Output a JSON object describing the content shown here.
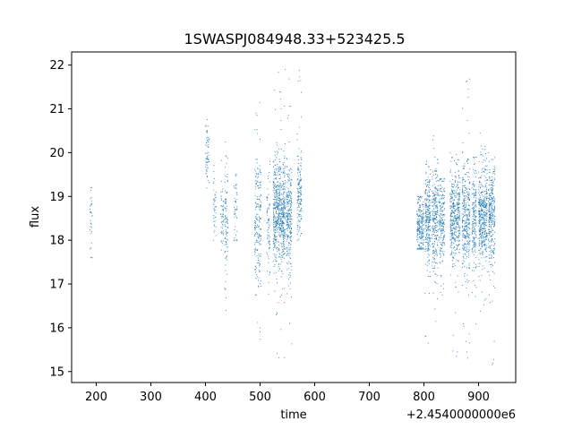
{
  "chart_data": {
    "type": "scatter",
    "title": "1SWASPJ084948.33+523425.5",
    "xlabel": "time",
    "ylabel": "flux",
    "x_offset_label": "+2.4540000000e6",
    "xlim": [
      155,
      968
    ],
    "ylim": [
      14.75,
      22.3
    ],
    "x_ticks": [
      200,
      300,
      400,
      500,
      600,
      700,
      800,
      900
    ],
    "y_ticks": [
      15,
      16,
      17,
      18,
      19,
      20,
      21,
      22
    ],
    "grid": false,
    "legend": "none",
    "marker_color": "#1f77b4",
    "series": [
      {
        "clusters": [
          {
            "x_range": [
              188,
              193
            ],
            "y_center": 18.5,
            "y_spread": 0.5,
            "y_min": 17.6,
            "y_max": 19.2,
            "count": 35
          },
          {
            "x_range": [
              400,
              407
            ],
            "y_center": 19.9,
            "y_spread": 0.4,
            "y_min": 19.0,
            "y_max": 20.9,
            "count": 60
          },
          {
            "x_range": [
              415,
              420
            ],
            "y_center": 18.8,
            "y_spread": 0.4,
            "y_min": 18.0,
            "y_max": 19.9,
            "count": 40
          },
          {
            "x_range": [
              428,
              433
            ],
            "y_center": 18.6,
            "y_spread": 0.5,
            "y_min": 17.4,
            "y_max": 19.9,
            "count": 50
          },
          {
            "x_range": [
              435,
              441
            ],
            "y_center": 18.3,
            "y_spread": 0.7,
            "y_min": 16.4,
            "y_max": 20.6,
            "count": 90
          },
          {
            "x_range": [
              452,
              458
            ],
            "y_center": 18.7,
            "y_spread": 0.4,
            "y_min": 18.0,
            "y_max": 19.5,
            "count": 45
          },
          {
            "x_range": [
              490,
              502
            ],
            "y_center": 18.4,
            "y_spread": 0.8,
            "y_min": 15.2,
            "y_max": 21.3,
            "count": 200
          },
          {
            "x_range": [
              512,
              518
            ],
            "y_center": 18.3,
            "y_spread": 0.6,
            "y_min": 16.5,
            "y_max": 19.8,
            "count": 70
          },
          {
            "x_range": [
              524,
              546
            ],
            "y_center": 18.6,
            "y_spread": 0.6,
            "y_min": 15.3,
            "y_max": 22.0,
            "count": 650
          },
          {
            "x_range": [
              548,
              558
            ],
            "y_center": 18.5,
            "y_spread": 0.6,
            "y_min": 15.2,
            "y_max": 21.7,
            "count": 260
          },
          {
            "x_range": [
              568,
              576
            ],
            "y_center": 19.0,
            "y_spread": 0.5,
            "y_min": 18.0,
            "y_max": 22.0,
            "count": 150
          },
          {
            "x_range": [
              787,
              800
            ],
            "y_center": 18.35,
            "y_spread": 0.35,
            "y_min": 17.8,
            "y_max": 19.0,
            "count": 230
          },
          {
            "x_range": [
              802,
              812
            ],
            "y_center": 18.5,
            "y_spread": 0.5,
            "y_min": 15.6,
            "y_max": 19.8,
            "count": 250
          },
          {
            "x_range": [
              815,
              826
            ],
            "y_center": 18.4,
            "y_spread": 0.6,
            "y_min": 15.6,
            "y_max": 20.4,
            "count": 260
          },
          {
            "x_range": [
              828,
              838
            ],
            "y_center": 18.5,
            "y_spread": 0.5,
            "y_min": 16.6,
            "y_max": 19.4,
            "count": 200
          },
          {
            "x_range": [
              848,
              866
            ],
            "y_center": 18.6,
            "y_spread": 0.5,
            "y_min": 15.2,
            "y_max": 20.4,
            "count": 420
          },
          {
            "x_range": [
              870,
              884
            ],
            "y_center": 18.5,
            "y_spread": 0.6,
            "y_min": 15.2,
            "y_max": 21.7,
            "count": 330
          },
          {
            "x_range": [
              888,
              896
            ],
            "y_center": 18.4,
            "y_spread": 0.6,
            "y_min": 16.0,
            "y_max": 19.9,
            "count": 180
          },
          {
            "x_range": [
              900,
              916
            ],
            "y_center": 18.6,
            "y_spread": 0.55,
            "y_min": 16.3,
            "y_max": 20.7,
            "count": 430
          },
          {
            "x_range": [
              918,
              930
            ],
            "y_center": 18.5,
            "y_spread": 0.6,
            "y_min": 15.1,
            "y_max": 20.0,
            "count": 300
          }
        ]
      }
    ]
  }
}
